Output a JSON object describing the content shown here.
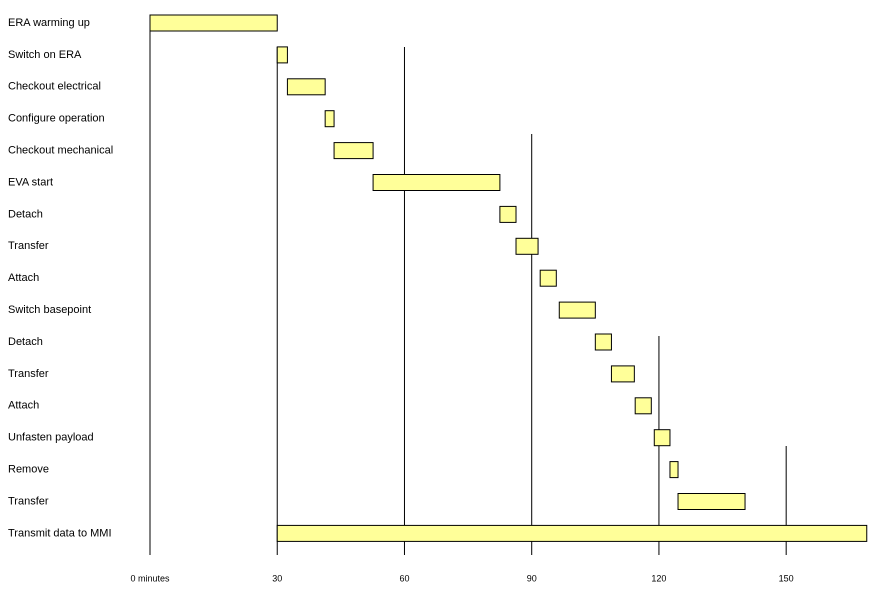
{
  "chart_data": {
    "type": "gantt",
    "color": "#ffff99",
    "xlim": [
      0,
      170
    ],
    "xticks": [
      {
        "value": 0,
        "label": "0 minutes"
      },
      30,
      60,
      90,
      120,
      150
    ],
    "tasks": [
      {
        "label": "ERA warming up",
        "start": 0,
        "end": 30
      },
      {
        "label": "Switch on ERA",
        "start": 30,
        "end": 32.4
      },
      {
        "label": "Checkout electrical",
        "start": 32.4,
        "end": 41.3
      },
      {
        "label": "Configure operation",
        "start": 41.3,
        "end": 43.4
      },
      {
        "label": "Checkout mechanical",
        "start": 43.4,
        "end": 52.6
      },
      {
        "label": "EVA start",
        "start": 52.6,
        "end": 82.5
      },
      {
        "label": "Detach",
        "start": 82.5,
        "end": 86.3
      },
      {
        "label": "Transfer",
        "start": 86.3,
        "end": 91.5
      },
      {
        "label": "Attach",
        "start": 92,
        "end": 95.8
      },
      {
        "label": "Switch basepoint",
        "start": 96.5,
        "end": 105
      },
      {
        "label": "Detach",
        "start": 105,
        "end": 108.8
      },
      {
        "label": "Transfer",
        "start": 108.8,
        "end": 114.2
      },
      {
        "label": "Attach",
        "start": 114.4,
        "end": 118.2
      },
      {
        "label": "Unfasten payload",
        "start": 118.9,
        "end": 122.6
      },
      {
        "label": "Remove",
        "start": 122.6,
        "end": 124.5
      },
      {
        "label": "Transfer",
        "start": 124.5,
        "end": 140.3
      },
      {
        "label": "Transmit data to MMI",
        "start": 30,
        "end": 169
      }
    ]
  }
}
